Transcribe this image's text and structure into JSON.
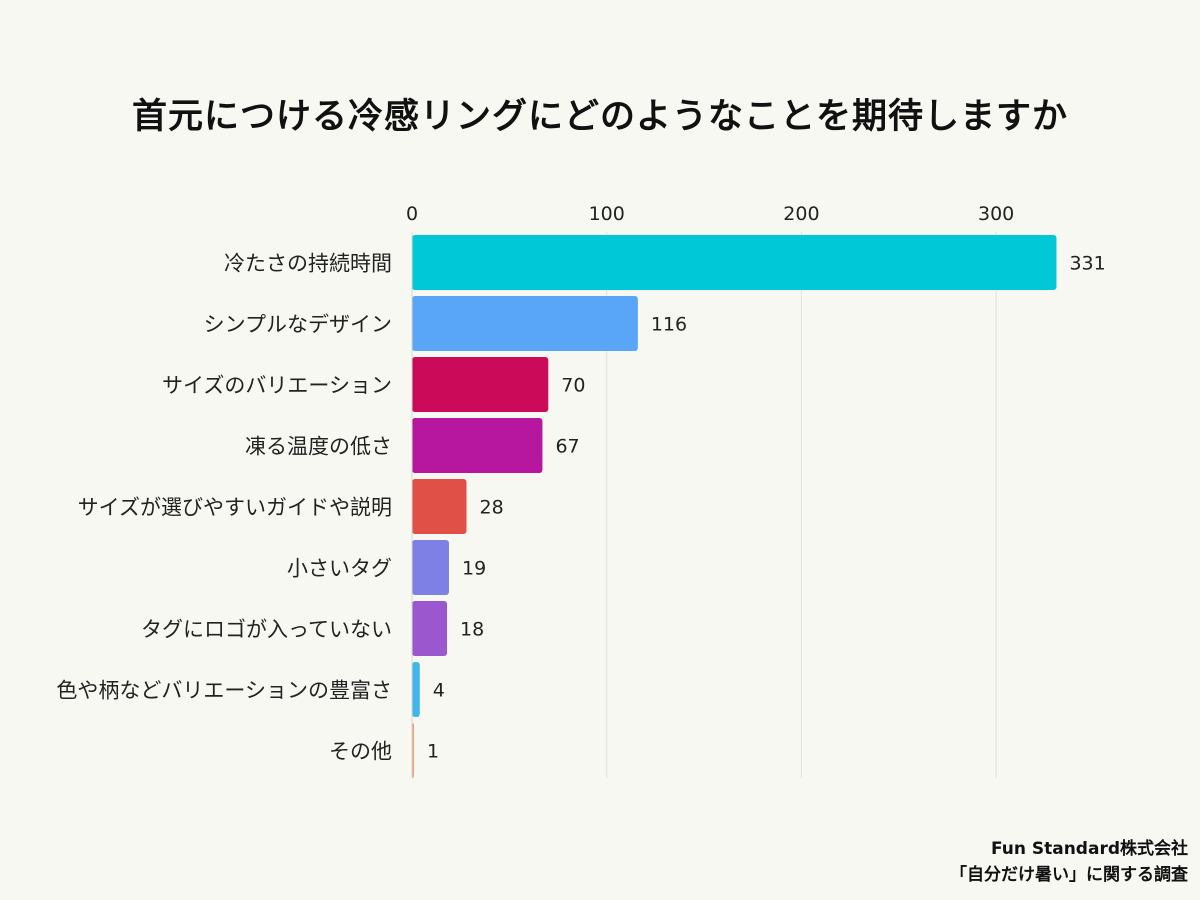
{
  "title": "首元につける冷感リングにどのようなことを期待しますか",
  "chart_data": {
    "type": "bar",
    "orientation": "horizontal",
    "title": "首元につける冷感リングにどのようなことを期待しますか",
    "xlim": [
      0,
      340
    ],
    "ticks": [
      0,
      100,
      200,
      300
    ],
    "grid": true,
    "axis_position": "top",
    "categories": [
      "冷たさの持続時間",
      "シンプルなデザイン",
      "サイズのバリエーション",
      "凍る温度の低さ",
      "サイズが選びやすいガイドや説明",
      "小さいタグ",
      "タグにロゴが入っていない",
      "色や柄などバリエーションの豊富さ",
      "その他"
    ],
    "values": [
      331,
      116,
      70,
      67,
      28,
      19,
      18,
      4,
      1
    ],
    "colors": [
      "#00c8d7",
      "#59a5f7",
      "#cc0a5a",
      "#b7169f",
      "#e05046",
      "#7e80e6",
      "#9b57cd",
      "#42b6ea",
      "#f0a076"
    ]
  },
  "credit": {
    "line1": "Fun Standard株式会社",
    "line2": "「自分だけ暑い」に関する調査"
  }
}
